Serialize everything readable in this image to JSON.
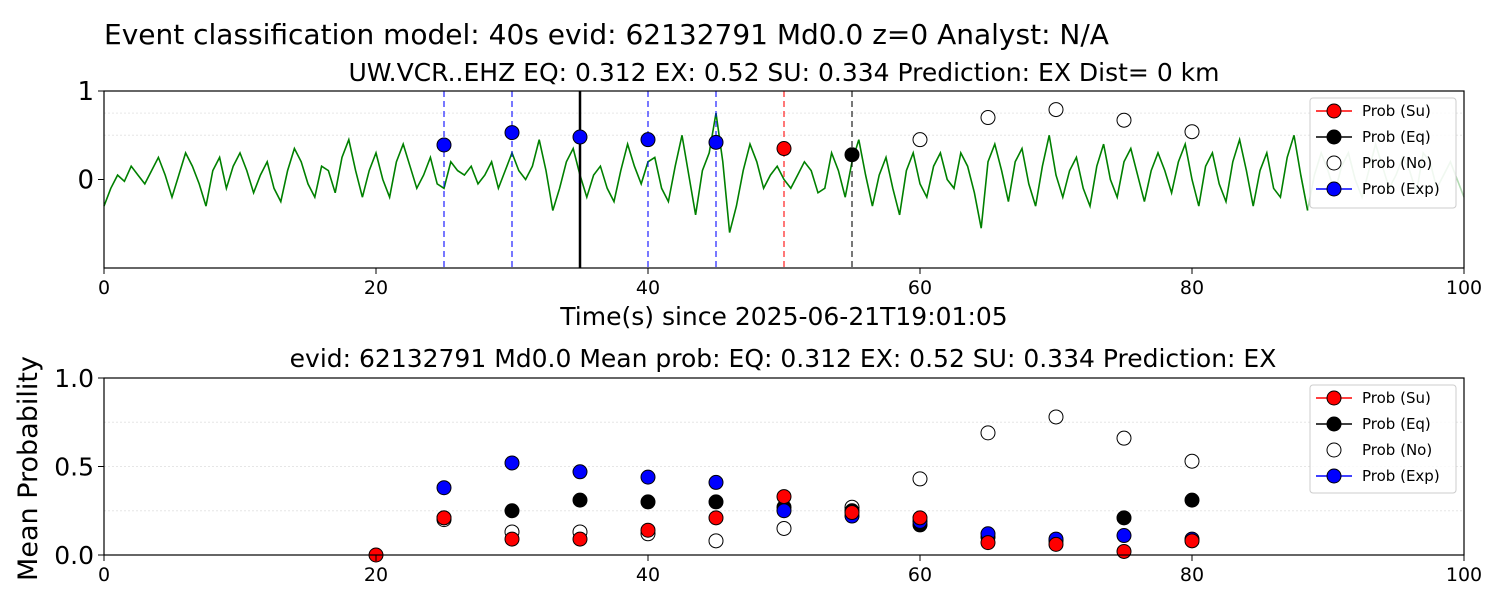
{
  "figure": {
    "suptitle": "Event classification model: 40s evid: 62132791 Md0.0 z=0 Analyst: N/A"
  },
  "chart_data": [
    {
      "type": "line",
      "title": "UW.VCR..EHZ   EQ: 0.312  EX: 0.52  SU: 0.334   Prediction: EX    Dist= 0 km",
      "xlabel": "Time(s) since 2025-06-21T19:01:05",
      "ylabel": "",
      "xlim": [
        0,
        100
      ],
      "ylim": [
        -1,
        1
      ],
      "xticks": [
        "0",
        "20",
        "40",
        "60",
        "80",
        "100"
      ],
      "yticks": [
        "1",
        "0"
      ],
      "grid": true,
      "legend_position": "top-right",
      "waveform": {
        "name": "",
        "color": "#008000",
        "faded_after_x": 88.5,
        "samples": [
          -0.3,
          -0.1,
          0.05,
          -0.02,
          0.15,
          0.05,
          -0.05,
          0.1,
          0.25,
          0.05,
          -0.2,
          0.05,
          0.3,
          0.15,
          -0.05,
          -0.3,
          0.1,
          0.25,
          -0.1,
          0.15,
          0.3,
          0.1,
          -0.15,
          0.05,
          0.2,
          -0.1,
          -0.25,
          0.1,
          0.35,
          0.2,
          -0.05,
          -0.2,
          0.15,
          0.1,
          -0.15,
          0.25,
          0.45,
          0.1,
          -0.2,
          0.1,
          0.3,
          0.0,
          -0.2,
          0.2,
          0.4,
          0.15,
          -0.1,
          0.05,
          0.25,
          -0.05,
          -0.1,
          0.2,
          0.1,
          0.05,
          0.15,
          -0.05,
          0.05,
          0.2,
          -0.1,
          0.1,
          0.3,
          0.1,
          0.0,
          0.15,
          0.45,
          0.1,
          -0.35,
          -0.1,
          0.2,
          0.35,
          0.05,
          -0.2,
          0.05,
          0.15,
          -0.1,
          -0.25,
          0.1,
          0.4,
          0.15,
          -0.05,
          0.2,
          0.25,
          -0.1,
          -0.25,
          0.15,
          0.5,
          0.05,
          -0.4,
          0.1,
          0.3,
          0.75,
          0.2,
          -0.6,
          -0.3,
          0.1,
          0.4,
          0.2,
          -0.1,
          0.05,
          0.15,
          0.0,
          -0.1,
          0.05,
          0.2,
          0.1,
          -0.15,
          -0.1,
          0.3,
          0.1,
          -0.2,
          0.2,
          0.45,
          0.05,
          -0.3,
          0.05,
          0.25,
          -0.1,
          -0.4,
          0.1,
          0.3,
          -0.05,
          -0.2,
          0.15,
          0.3,
          0.0,
          -0.1,
          0.3,
          0.15,
          -0.15,
          -0.55,
          0.2,
          0.4,
          0.1,
          -0.25,
          0.2,
          0.35,
          -0.05,
          -0.3,
          0.15,
          0.5,
          0.05,
          -0.2,
          0.1,
          0.25,
          -0.1,
          -0.3,
          0.15,
          0.4,
          0.0,
          -0.2,
          0.2,
          0.35,
          0.05,
          -0.25,
          0.1,
          0.3,
          0.1,
          -0.15,
          0.2,
          0.4,
          0.0,
          -0.3,
          0.15,
          0.3,
          -0.05,
          -0.25,
          0.2,
          0.45,
          0.1,
          -0.3,
          0.1,
          0.3,
          -0.1,
          -0.2,
          0.25,
          0.5,
          0.05,
          -0.35,
          0.05,
          0.3,
          0.1,
          -0.15,
          0.15,
          0.3,
          0.0,
          -0.2,
          0.1,
          0.4,
          0.15,
          -0.1,
          0.05,
          0.25,
          0.1,
          -0.15,
          0.3,
          0.2,
          -0.1,
          0.05,
          0.2,
          0.0,
          -0.2
        ]
      },
      "vertical_markers": [
        {
          "x": 25,
          "color": "#0000ff",
          "style": "dashed"
        },
        {
          "x": 30,
          "color": "#0000ff",
          "style": "dashed"
        },
        {
          "x": 35,
          "color": "#000000",
          "style": "solid"
        },
        {
          "x": 40,
          "color": "#0000ff",
          "style": "dashed"
        },
        {
          "x": 45,
          "color": "#0000ff",
          "style": "dashed"
        },
        {
          "x": 50,
          "color": "#ff0000",
          "style": "dashed"
        },
        {
          "x": 55,
          "color": "#000000",
          "style": "dashed"
        }
      ],
      "points": [
        {
          "x": 25,
          "y": 0.39,
          "color": "#0000ff"
        },
        {
          "x": 30,
          "y": 0.53,
          "color": "#0000ff"
        },
        {
          "x": 35,
          "y": 0.48,
          "color": "#0000ff"
        },
        {
          "x": 40,
          "y": 0.45,
          "color": "#0000ff"
        },
        {
          "x": 45,
          "y": 0.42,
          "color": "#0000ff"
        },
        {
          "x": 50,
          "y": 0.35,
          "color": "#ff0000"
        },
        {
          "x": 55,
          "y": 0.28,
          "color": "#000000"
        },
        {
          "x": 60,
          "y": 0.45,
          "color": "#ffffff"
        },
        {
          "x": 65,
          "y": 0.7,
          "color": "#ffffff"
        },
        {
          "x": 70,
          "y": 0.79,
          "color": "#ffffff"
        },
        {
          "x": 75,
          "y": 0.67,
          "color": "#ffffff"
        },
        {
          "x": 80,
          "y": 0.54,
          "color": "#ffffff"
        }
      ],
      "legend": [
        {
          "label": "Prob (Su)",
          "color": "#ff0000",
          "line": "#ff0000"
        },
        {
          "label": "Prob (Eq)",
          "color": "#000000",
          "line": "#000000"
        },
        {
          "label": "Prob (No)",
          "color": "#ffffff",
          "line": ""
        },
        {
          "label": "Prob (Exp)",
          "color": "#0000ff",
          "line": "#0000ff"
        }
      ]
    },
    {
      "type": "scatter",
      "title": "evid: 62132791  Md0.0   Mean prob:   EQ: 0.312  EX: 0.52  SU: 0.334   Prediction: EX",
      "xlabel": "",
      "ylabel": "Mean Probability",
      "xlim": [
        0,
        100
      ],
      "ylim": [
        0,
        1
      ],
      "xticks": [
        "0",
        "20",
        "40",
        "60",
        "80",
        "100"
      ],
      "yticks": [
        "0.0",
        "0.5",
        "1.0"
      ],
      "grid": true,
      "legend_position": "top-right",
      "series": [
        {
          "name": "Prob (Su)",
          "color": "#ff0000",
          "line": "#ff0000",
          "x": [
            20,
            25,
            30,
            35,
            40,
            45,
            50,
            55,
            60,
            65,
            70,
            75,
            80
          ],
          "y": [
            0.0,
            0.21,
            0.09,
            0.09,
            0.14,
            0.21,
            0.33,
            0.24,
            0.21,
            0.07,
            0.06,
            0.02,
            0.08
          ]
        },
        {
          "name": "Prob (Eq)",
          "color": "#000000",
          "line": "#000000",
          "x": [
            25,
            30,
            35,
            40,
            45,
            50,
            55,
            60,
            65,
            70,
            75,
            80
          ],
          "y": [
            0.21,
            0.25,
            0.31,
            0.3,
            0.3,
            0.27,
            0.25,
            0.17,
            0.1,
            0.08,
            0.21,
            0.31
          ]
        },
        {
          "name": "Prob (No)",
          "color": "#ffffff",
          "line": "",
          "x": [
            25,
            30,
            35,
            40,
            45,
            50,
            55,
            60,
            65,
            70,
            75,
            80
          ],
          "y": [
            0.2,
            0.13,
            0.13,
            0.12,
            0.08,
            0.15,
            0.27,
            0.43,
            0.69,
            0.78,
            0.66,
            0.53
          ]
        },
        {
          "name": "Prob (Exp)",
          "color": "#0000ff",
          "line": "#0000ff",
          "x": [
            25,
            30,
            35,
            40,
            45,
            50,
            55,
            60,
            65,
            70,
            75,
            80
          ],
          "y": [
            0.38,
            0.52,
            0.47,
            0.44,
            0.41,
            0.25,
            0.22,
            0.19,
            0.12,
            0.09,
            0.11,
            0.09
          ]
        }
      ]
    }
  ]
}
